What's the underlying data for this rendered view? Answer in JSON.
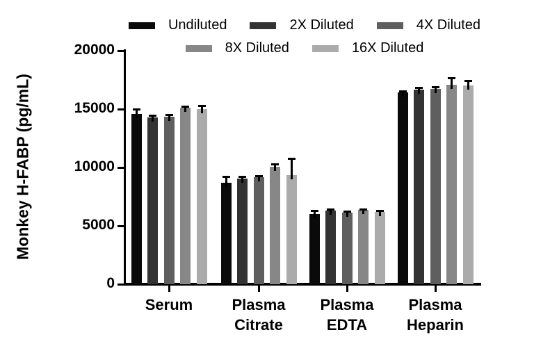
{
  "chart_data": {
    "type": "bar",
    "title": "",
    "xlabel": "",
    "ylabel": "Monkey H-FABP (pg/mL)",
    "ylim": [
      0,
      20000
    ],
    "yticks": [
      0,
      5000,
      10000,
      15000,
      20000
    ],
    "grid": false,
    "legend_position": "top",
    "error_bars": "upper, black stem with cap",
    "categories": [
      "Serum",
      "Plasma Citrate",
      "Plasma EDTA",
      "Plasma Heparin"
    ],
    "series": [
      {
        "name": "Undiluted",
        "color": "#0a0a0a",
        "values": [
          14600,
          8700,
          6000,
          16450
        ],
        "errors": [
          400,
          500,
          300,
          100
        ]
      },
      {
        "name": "2X Diluted",
        "color": "#333333",
        "values": [
          14300,
          9050,
          6300,
          16650
        ],
        "errors": [
          150,
          150,
          100,
          200
        ]
      },
      {
        "name": "4X Diluted",
        "color": "#5f5f5f",
        "values": [
          14350,
          9150,
          6150,
          16700
        ],
        "errors": [
          150,
          150,
          100,
          200
        ]
      },
      {
        "name": "8X Diluted",
        "color": "#878787",
        "values": [
          15100,
          10050,
          6350,
          17100
        ],
        "errors": [
          150,
          250,
          100,
          550
        ]
      },
      {
        "name": "16X Diluted",
        "color": "#ababab",
        "values": [
          15000,
          9350,
          6200,
          17050
        ],
        "errors": [
          300,
          1400,
          100,
          400
        ]
      }
    ],
    "legend_rows": [
      [
        0,
        1,
        2
      ],
      [
        3,
        4
      ]
    ]
  },
  "colors": {
    "axis": "#000000",
    "text": "#000000",
    "background": "#ffffff"
  }
}
